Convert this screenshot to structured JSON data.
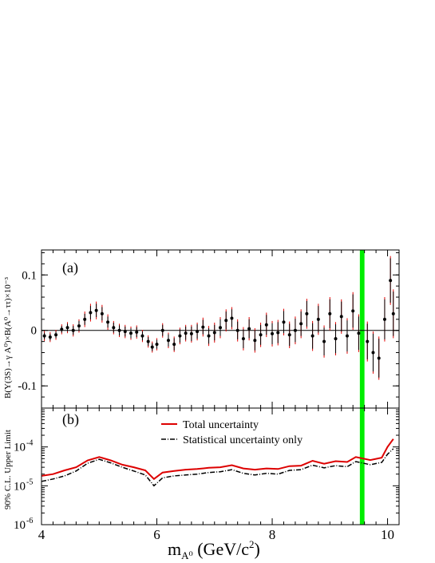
{
  "chart_data": [
    {
      "panel": "(a)",
      "type": "scatter",
      "ylabel": "B(Υ(3S)→γ A⁰)×B(A⁰→ττ)×10⁻³",
      "xlim": [
        4.0,
        10.2
      ],
      "ylim": [
        -0.14,
        0.145
      ],
      "yticks": [
        "-0.1",
        "0",
        "0.1"
      ],
      "excluded_region_color": "#00ee00",
      "excluded_region": [
        9.52,
        9.6
      ],
      "series": [
        {
          "x": [
            4.05,
            4.15,
            4.25,
            4.35,
            4.45,
            4.55,
            4.65,
            4.75,
            4.85,
            4.95,
            5.05,
            5.15,
            5.25,
            5.35,
            5.45,
            5.55,
            5.65,
            5.75,
            5.85,
            5.92,
            6.0,
            6.1,
            6.2,
            6.3,
            6.4,
            6.5,
            6.6,
            6.7,
            6.8,
            6.9,
            7.0,
            7.1,
            7.2,
            7.3,
            7.4,
            7.5,
            7.6,
            7.7,
            7.8,
            7.9,
            8.0,
            8.1,
            8.2,
            8.3,
            8.4,
            8.5,
            8.6,
            8.7,
            8.8,
            8.9,
            9.0,
            9.1,
            9.2,
            9.3,
            9.4,
            9.5,
            9.65,
            9.75,
            9.85,
            9.95,
            10.05,
            10.1
          ],
          "y": [
            -0.01,
            -0.012,
            -0.008,
            0.002,
            0.005,
            0.0,
            0.008,
            0.02,
            0.032,
            0.036,
            0.03,
            0.015,
            0.005,
            0.0,
            -0.002,
            -0.005,
            -0.003,
            -0.01,
            -0.02,
            -0.03,
            -0.025,
            0.0,
            -0.018,
            -0.025,
            -0.01,
            -0.005,
            -0.006,
            -0.002,
            0.006,
            -0.01,
            -0.004,
            0.005,
            0.018,
            0.022,
            0.0,
            -0.015,
            0.003,
            -0.018,
            -0.008,
            0.01,
            -0.006,
            -0.004,
            0.015,
            -0.008,
            0.0,
            0.012,
            0.03,
            -0.01,
            0.02,
            -0.02,
            0.03,
            -0.015,
            0.025,
            -0.01,
            0.035,
            -0.005,
            -0.02,
            -0.04,
            -0.05,
            0.02,
            0.09,
            0.03
          ],
          "err_stat": [
            0.006,
            0.006,
            0.006,
            0.006,
            0.007,
            0.008,
            0.009,
            0.01,
            0.012,
            0.012,
            0.012,
            0.01,
            0.009,
            0.009,
            0.009,
            0.009,
            0.009,
            0.008,
            0.008,
            0.007,
            0.008,
            0.01,
            0.011,
            0.011,
            0.012,
            0.012,
            0.013,
            0.013,
            0.013,
            0.014,
            0.014,
            0.015,
            0.016,
            0.016,
            0.016,
            0.017,
            0.017,
            0.018,
            0.018,
            0.018,
            0.019,
            0.019,
            0.02,
            0.02,
            0.021,
            0.022,
            0.023,
            0.023,
            0.024,
            0.025,
            0.026,
            0.026,
            0.027,
            0.028,
            0.03,
            0.03,
            0.032,
            0.034,
            0.035,
            0.036,
            0.04,
            0.04
          ],
          "err_total": [
            0.009,
            0.009,
            0.009,
            0.009,
            0.01,
            0.011,
            0.012,
            0.014,
            0.016,
            0.016,
            0.016,
            0.014,
            0.012,
            0.012,
            0.012,
            0.012,
            0.012,
            0.011,
            0.011,
            0.01,
            0.011,
            0.013,
            0.014,
            0.014,
            0.015,
            0.015,
            0.016,
            0.016,
            0.017,
            0.018,
            0.018,
            0.019,
            0.02,
            0.02,
            0.02,
            0.021,
            0.021,
            0.022,
            0.022,
            0.022,
            0.023,
            0.023,
            0.024,
            0.024,
            0.025,
            0.026,
            0.027,
            0.027,
            0.028,
            0.029,
            0.03,
            0.03,
            0.031,
            0.032,
            0.034,
            0.034,
            0.036,
            0.038,
            0.039,
            0.04,
            0.044,
            0.044
          ]
        }
      ]
    },
    {
      "panel": "(b)",
      "type": "line",
      "ylabel": "90% C.L. Upper Limit",
      "xlabel_main": "m",
      "xlabel_sub": "A⁰",
      "xlabel_rest": " (GeV/c",
      "xlabel_sup": "2",
      "xlabel_end": ")",
      "xlim": [
        4.0,
        10.2
      ],
      "ylim_log10": [
        -6,
        -3
      ],
      "log_y": true,
      "yticks": [
        {
          "base": "10",
          "exp": "-6"
        },
        {
          "base": "10",
          "exp": "-5"
        },
        {
          "base": "10",
          "exp": "-4"
        }
      ],
      "xticks": [
        "4",
        "6",
        "8",
        "10"
      ],
      "legend_placement": "top-center",
      "series": [
        {
          "name": "Total uncertainty",
          "color": "#dd0000",
          "x": [
            4.0,
            4.2,
            4.4,
            4.6,
            4.8,
            5.0,
            5.2,
            5.4,
            5.6,
            5.8,
            5.95,
            6.1,
            6.3,
            6.5,
            6.7,
            6.9,
            7.1,
            7.3,
            7.5,
            7.7,
            7.9,
            8.1,
            8.3,
            8.5,
            8.7,
            8.9,
            9.1,
            9.3,
            9.45,
            9.7,
            9.9,
            10.0,
            10.1
          ],
          "y": [
            1.8e-05,
            2e-05,
            2.5e-05,
            3e-05,
            4.5e-05,
            5.5e-05,
            4.5e-05,
            3.5e-05,
            3e-05,
            2.5e-05,
            1.5e-05,
            2.2e-05,
            2.4e-05,
            2.6e-05,
            2.7e-05,
            2.9e-05,
            3e-05,
            3.4e-05,
            2.8e-05,
            2.6e-05,
            2.8e-05,
            2.7e-05,
            3.2e-05,
            3.3e-05,
            4.4e-05,
            3.7e-05,
            4.3e-05,
            4.1e-05,
            5.5e-05,
            4.6e-05,
            5.3e-05,
            0.0001,
            0.00016
          ]
        },
        {
          "name": "Statistical uncertainty only",
          "color": "#000000",
          "x": [
            4.0,
            4.2,
            4.4,
            4.6,
            4.8,
            5.0,
            5.2,
            5.4,
            5.6,
            5.8,
            5.95,
            6.1,
            6.3,
            6.5,
            6.7,
            6.9,
            7.1,
            7.3,
            7.5,
            7.7,
            7.9,
            8.1,
            8.3,
            8.5,
            8.7,
            8.9,
            9.1,
            9.3,
            9.45,
            9.7,
            9.9,
            10.0,
            10.1
          ],
          "y": [
            1.3e-05,
            1.5e-05,
            1.8e-05,
            2.4e-05,
            3.8e-05,
            4.8e-05,
            3.9e-05,
            3e-05,
            2.4e-05,
            1.9e-05,
            1e-05,
            1.6e-05,
            1.8e-05,
            1.9e-05,
            2e-05,
            2.2e-05,
            2.3e-05,
            2.6e-05,
            2.1e-05,
            1.9e-05,
            2.1e-05,
            2e-05,
            2.5e-05,
            2.6e-05,
            3.4e-05,
            2.9e-05,
            3.3e-05,
            3.1e-05,
            4.2e-05,
            3.5e-05,
            4e-05,
            6.5e-05,
            9e-05
          ]
        }
      ]
    }
  ]
}
